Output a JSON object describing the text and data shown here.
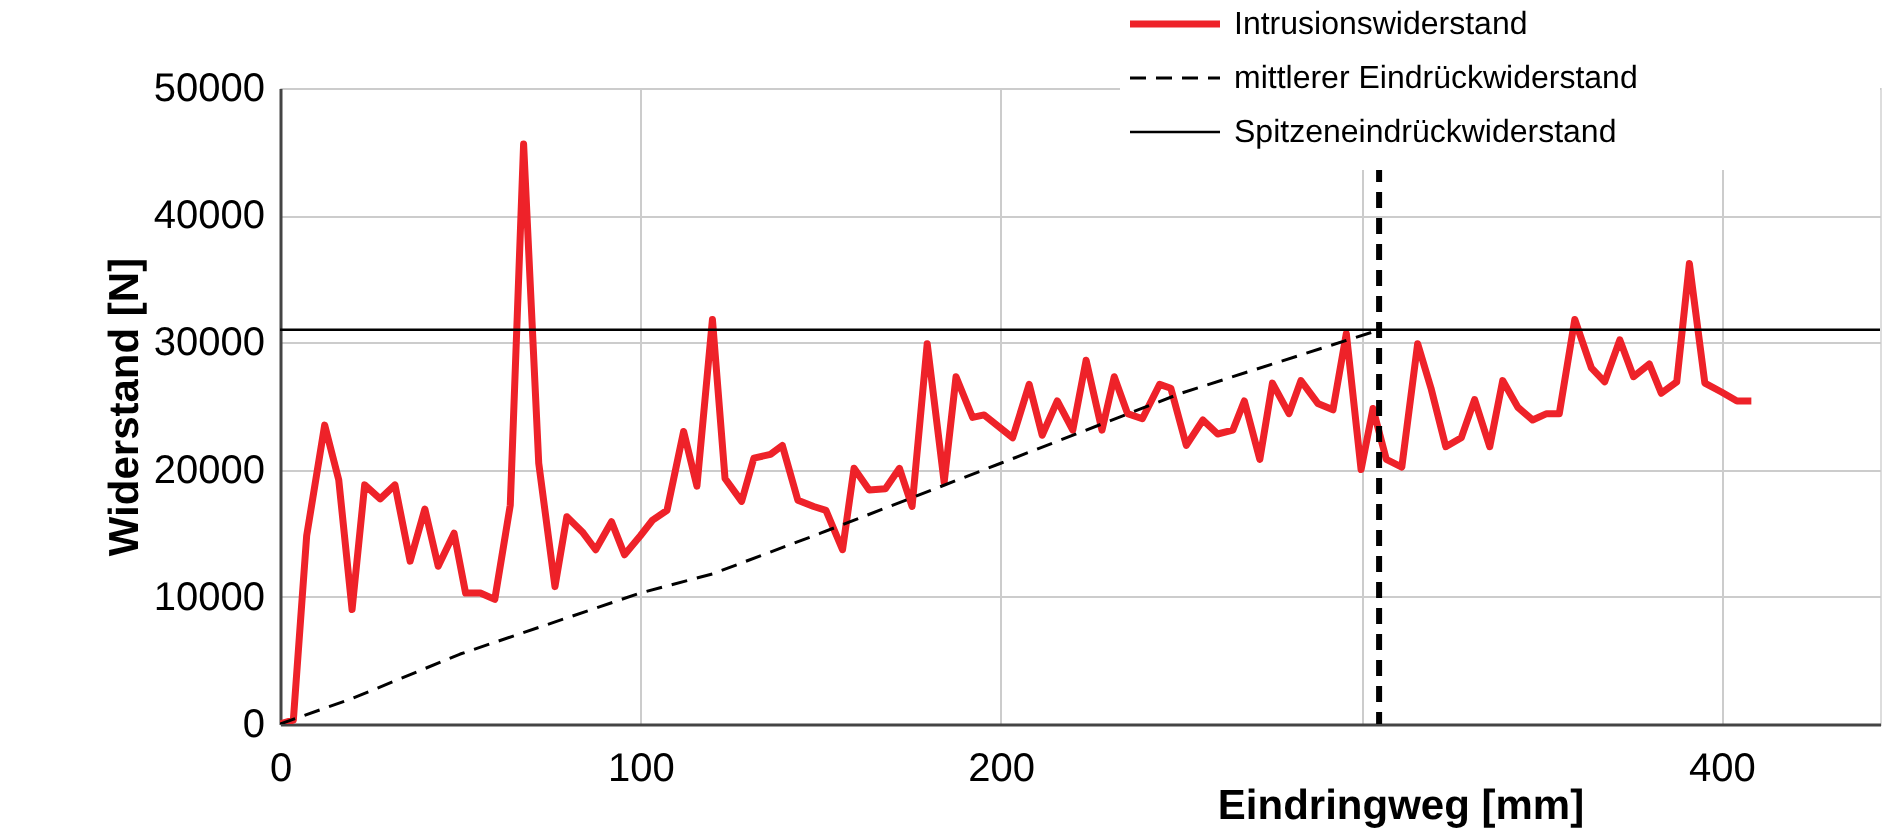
{
  "chart_data": {
    "type": "line",
    "xlabel": "Eindringweg [mm]",
    "ylabel": "Widerstand [N]",
    "xlim": [
      0,
      444
    ],
    "ylim": [
      0,
      50000
    ],
    "xticks": [
      0,
      100,
      200,
      {
        "value": 300,
        "label": null
      },
      400
    ],
    "yticks": [
      0,
      10000,
      20000,
      30000,
      40000,
      50000
    ],
    "grid": true,
    "legend": "top right",
    "series": [
      {
        "name": "Intrusionswiderstand",
        "color": "#ee2229",
        "line_style": "solid",
        "x": [
          0,
          3.7,
          7.4,
          12.4,
          16.3,
          20,
          23.5,
          27.8,
          31.9,
          36.1,
          40.2,
          43.9,
          48.3,
          51.5,
          55.6,
          59.6,
          63.9,
          67.6,
          71.8,
          76.3,
          79.6,
          83.9,
          87.6,
          92,
          95.6,
          100,
          103.3,
          107.4,
          112,
          115.7,
          120,
          123.5,
          128.1,
          131.5,
          136.1,
          139.4,
          143.7,
          148.1,
          151.5,
          156.1,
          159.3,
          163.5,
          168,
          171.9,
          175.4,
          179.6,
          184.3,
          187.6,
          192.2,
          195.4,
          203.3,
          207.9,
          211.5,
          215.7,
          220,
          223.7,
          228.1,
          231.5,
          235.2,
          239.3,
          244.1,
          247.2,
          251.5,
          256.1,
          260.2,
          264.4,
          267.6,
          271.9,
          275.4,
          280,
          283.3,
          288,
          292.2,
          295.9,
          300,
          303.3,
          307,
          311.3,
          315.7,
          319.4,
          323.5,
          327.8,
          331.5,
          335.7,
          339.3,
          343.5,
          347.6,
          351.5,
          355,
          359.3,
          363.9,
          367.6,
          371.8,
          375.6,
          380,
          383.3,
          387.6,
          391.1,
          395.4,
          400,
          404.3,
          408.3
        ],
        "values": [
          0,
          300,
          14800,
          23500,
          19200,
          9000,
          18800,
          17700,
          18800,
          12800,
          16900,
          12400,
          15000,
          10300,
          10300,
          9800,
          17200,
          45600,
          20500,
          10800,
          16300,
          15100,
          13700,
          15900,
          13300,
          14800,
          16000,
          16800,
          23000,
          18700,
          31800,
          19300,
          17500,
          20900,
          21200,
          21900,
          17600,
          17100,
          16800,
          13700,
          20100,
          18400,
          18500,
          20100,
          17100,
          29900,
          19000,
          27300,
          24100,
          24300,
          22500,
          26700,
          22700,
          25400,
          23100,
          28600,
          23100,
          27300,
          24400,
          24000,
          26700,
          26400,
          21900,
          23900,
          22800,
          23100,
          25400,
          20800,
          26800,
          24400,
          27000,
          25200,
          24700,
          30700,
          20000,
          24800,
          20800,
          20200,
          29900,
          26400,
          21800,
          22500,
          25500,
          21800,
          27000,
          24900,
          23900,
          24400,
          24400,
          31800,
          28000,
          26900,
          30200,
          27300,
          28300,
          26000,
          26900,
          36200,
          26800,
          26100,
          25400,
          25400
        ]
      },
      {
        "name": "mittlerer Eindrückwiderstand",
        "color": "#000000",
        "line_style": "dashed",
        "x": [
          0,
          20,
          50,
          100,
          120,
          150,
          200,
          250,
          303
        ],
        "values": [
          0,
          2000,
          5500,
          10300,
          11800,
          15000,
          20500,
          26000,
          30800
        ]
      },
      {
        "name": "Spitzeneindrückwiderstand",
        "color": "#000000",
        "line_style": "solid",
        "x": [
          0,
          444
        ],
        "values": [
          31000,
          31000
        ]
      }
    ],
    "ref_lines": [
      {
        "axis": "x",
        "value": 305,
        "color": "#000000",
        "line_style": "dashed"
      }
    ]
  }
}
